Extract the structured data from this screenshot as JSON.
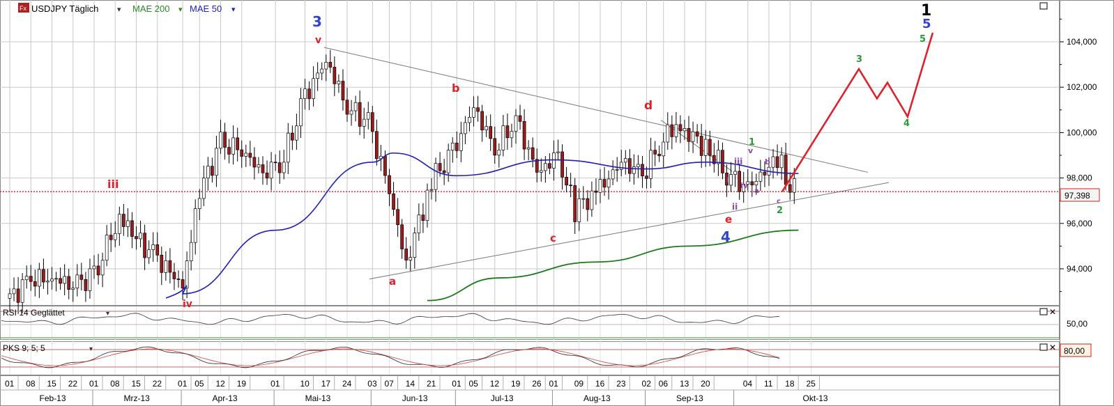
{
  "header": {
    "symbol_badge": "Fx",
    "title": "USDJPY Täglich",
    "ind1": "MAE 200",
    "ind2": "MAE 50",
    "dropdown_glyph": "▾"
  },
  "colors": {
    "candle_up": "#ffffff",
    "candle_down": "#9b1c1c",
    "ma200": "#1a7a1a",
    "ma50": "#1f1fb8",
    "price_line": "#d21e1e",
    "projection": "#e0202a",
    "grid": "#c8c8c8",
    "wave_red": "#e0202a",
    "wave_blue": "#3344cc",
    "wave_green": "#2a9a3a",
    "wave_purple": "#8a4aa8",
    "wave_black": "#000000"
  },
  "price_axis": {
    "ticks": [
      "104,000",
      "102,000",
      "100,000",
      "98,000",
      "96,000",
      "94,000"
    ],
    "current_price": "97,398"
  },
  "rsi_panel": {
    "title": "RSI 14 Geglättet",
    "value_label": "50,00"
  },
  "pks_panel": {
    "title": "PKS 9; 5; 5",
    "value_label": "80,00"
  },
  "x_axis": {
    "day_ticks": [
      "01",
      "08",
      "15",
      "22",
      "01",
      "08",
      "15",
      "22",
      "01",
      "05",
      "12",
      "19",
      "01",
      "10",
      "17",
      "24",
      "03",
      "07",
      "14",
      "21",
      "01",
      "05",
      "12",
      "19",
      "26",
      "01",
      "09",
      "16",
      "23",
      "02",
      "06",
      "13",
      "20",
      "04",
      "11",
      "18",
      "25"
    ],
    "months": [
      "Feb-13",
      "Mrz-13",
      "Apr-13",
      "Mai-13",
      "Jun-13",
      "Jul-13",
      "Aug-13",
      "Sep-13",
      "Okt-13"
    ]
  },
  "wave_labels": [
    {
      "text": "3",
      "color": "blue"
    },
    {
      "text": "v",
      "color": "red"
    },
    {
      "text": "iii",
      "color": "red"
    },
    {
      "text": "iv",
      "color": "red"
    },
    {
      "text": "a",
      "color": "red"
    },
    {
      "text": "b",
      "color": "red"
    },
    {
      "text": "c",
      "color": "red"
    },
    {
      "text": "d",
      "color": "red"
    },
    {
      "text": "e",
      "color": "red"
    },
    {
      "text": "4",
      "color": "blue"
    },
    {
      "text": "1",
      "color": "green"
    },
    {
      "text": "v",
      "color": "purple"
    },
    {
      "text": "b",
      "color": "purple"
    },
    {
      "text": "iii",
      "color": "purple"
    },
    {
      "text": "i",
      "color": "purple"
    },
    {
      "text": "iv",
      "color": "purple"
    },
    {
      "text": "a",
      "color": "purple"
    },
    {
      "text": "ii",
      "color": "purple"
    },
    {
      "text": "c",
      "color": "purple"
    },
    {
      "text": "2",
      "color": "green"
    },
    {
      "text": "3",
      "color": "green"
    },
    {
      "text": "4",
      "color": "green"
    },
    {
      "text": "5",
      "color": "green"
    },
    {
      "text": "5",
      "color": "blue"
    },
    {
      "text": "1",
      "color": "black"
    }
  ],
  "chart_data": {
    "type": "candlestick",
    "title": "USDJPY Täglich",
    "period": "daily",
    "ylim": [
      92.5,
      105.5
    ],
    "indicators": [
      "MAE 200",
      "MAE 50"
    ],
    "current_price": 97.398,
    "x_range": [
      "2013-01-31",
      "2013-10-28"
    ],
    "closes_approx": [
      {
        "date": "2013-02-01",
        "close": 92.7
      },
      {
        "date": "2013-02-08",
        "close": 93.6
      },
      {
        "date": "2013-02-15",
        "close": 93.5
      },
      {
        "date": "2013-02-22",
        "close": 93.4
      },
      {
        "date": "2013-03-01",
        "close": 93.6
      },
      {
        "date": "2013-03-08",
        "close": 96.0
      },
      {
        "date": "2013-03-11",
        "close": 96.3
      },
      {
        "date": "2013-03-15",
        "close": 95.3
      },
      {
        "date": "2013-03-22",
        "close": 94.5
      },
      {
        "date": "2013-04-01",
        "close": 93.2
      },
      {
        "date": "2013-04-05",
        "close": 97.4
      },
      {
        "date": "2013-04-12",
        "close": 99.5
      },
      {
        "date": "2013-04-19",
        "close": 99.3
      },
      {
        "date": "2013-04-26",
        "close": 98.1
      },
      {
        "date": "2013-05-03",
        "close": 98.9
      },
      {
        "date": "2013-05-10",
        "close": 101.6
      },
      {
        "date": "2013-05-17",
        "close": 103.2
      },
      {
        "date": "2013-05-24",
        "close": 101.1
      },
      {
        "date": "2013-05-31",
        "close": 100.5
      },
      {
        "date": "2013-06-07",
        "close": 97.5
      },
      {
        "date": "2013-06-13",
        "close": 94.2
      },
      {
        "date": "2013-06-21",
        "close": 97.9
      },
      {
        "date": "2013-06-28",
        "close": 99.1
      },
      {
        "date": "2013-07-05",
        "close": 101.2
      },
      {
        "date": "2013-07-12",
        "close": 99.2
      },
      {
        "date": "2013-07-19",
        "close": 100.6
      },
      {
        "date": "2013-07-26",
        "close": 98.3
      },
      {
        "date": "2013-08-02",
        "close": 98.9
      },
      {
        "date": "2013-08-08",
        "close": 96.6
      },
      {
        "date": "2013-08-16",
        "close": 97.5
      },
      {
        "date": "2013-08-23",
        "close": 98.8
      },
      {
        "date": "2013-08-30",
        "close": 98.1
      },
      {
        "date": "2013-09-06",
        "close": 99.7
      },
      {
        "date": "2013-09-11",
        "close": 100.3
      },
      {
        "date": "2013-09-20",
        "close": 99.4
      },
      {
        "date": "2013-09-27",
        "close": 98.2
      },
      {
        "date": "2013-10-04",
        "close": 97.5
      },
      {
        "date": "2013-10-11",
        "close": 98.6
      },
      {
        "date": "2013-10-16",
        "close": 98.8
      },
      {
        "date": "2013-10-18",
        "close": 97.7
      },
      {
        "date": "2013-10-22",
        "close": 97.4
      }
    ],
    "ma50_approx": [
      {
        "date": "2013-04-01",
        "value": 92.9
      },
      {
        "date": "2013-05-01",
        "value": 95.7
      },
      {
        "date": "2013-06-01",
        "value": 98.7
      },
      {
        "date": "2013-06-10",
        "value": 99.1
      },
      {
        "date": "2013-07-01",
        "value": 98.1
      },
      {
        "date": "2013-08-01",
        "value": 98.8
      },
      {
        "date": "2013-09-01",
        "value": 98.4
      },
      {
        "date": "2013-09-20",
        "value": 98.7
      },
      {
        "date": "2013-10-22",
        "value": 98.2
      }
    ],
    "ma200_approx": [
      {
        "date": "2013-06-20",
        "value": 92.6
      },
      {
        "date": "2013-07-15",
        "value": 93.6
      },
      {
        "date": "2013-08-15",
        "value": 94.3
      },
      {
        "date": "2013-09-15",
        "value": 95.0
      },
      {
        "date": "2013-10-22",
        "value": 95.7
      }
    ],
    "projection": [
      {
        "date": "2013-10-23",
        "value": 97.4
      },
      {
        "date": "2013-10-28",
        "value": 102.8
      },
      {
        "date": "2013-10-29",
        "value": 101.5
      },
      {
        "date": "2013-10-30",
        "value": 102.2
      },
      {
        "date": "2013-10-31",
        "value": 100.7
      },
      {
        "date": "2013-11-01",
        "value": 104.4
      }
    ],
    "y_ticks": [
      104,
      102,
      100,
      98,
      96,
      94
    ]
  }
}
